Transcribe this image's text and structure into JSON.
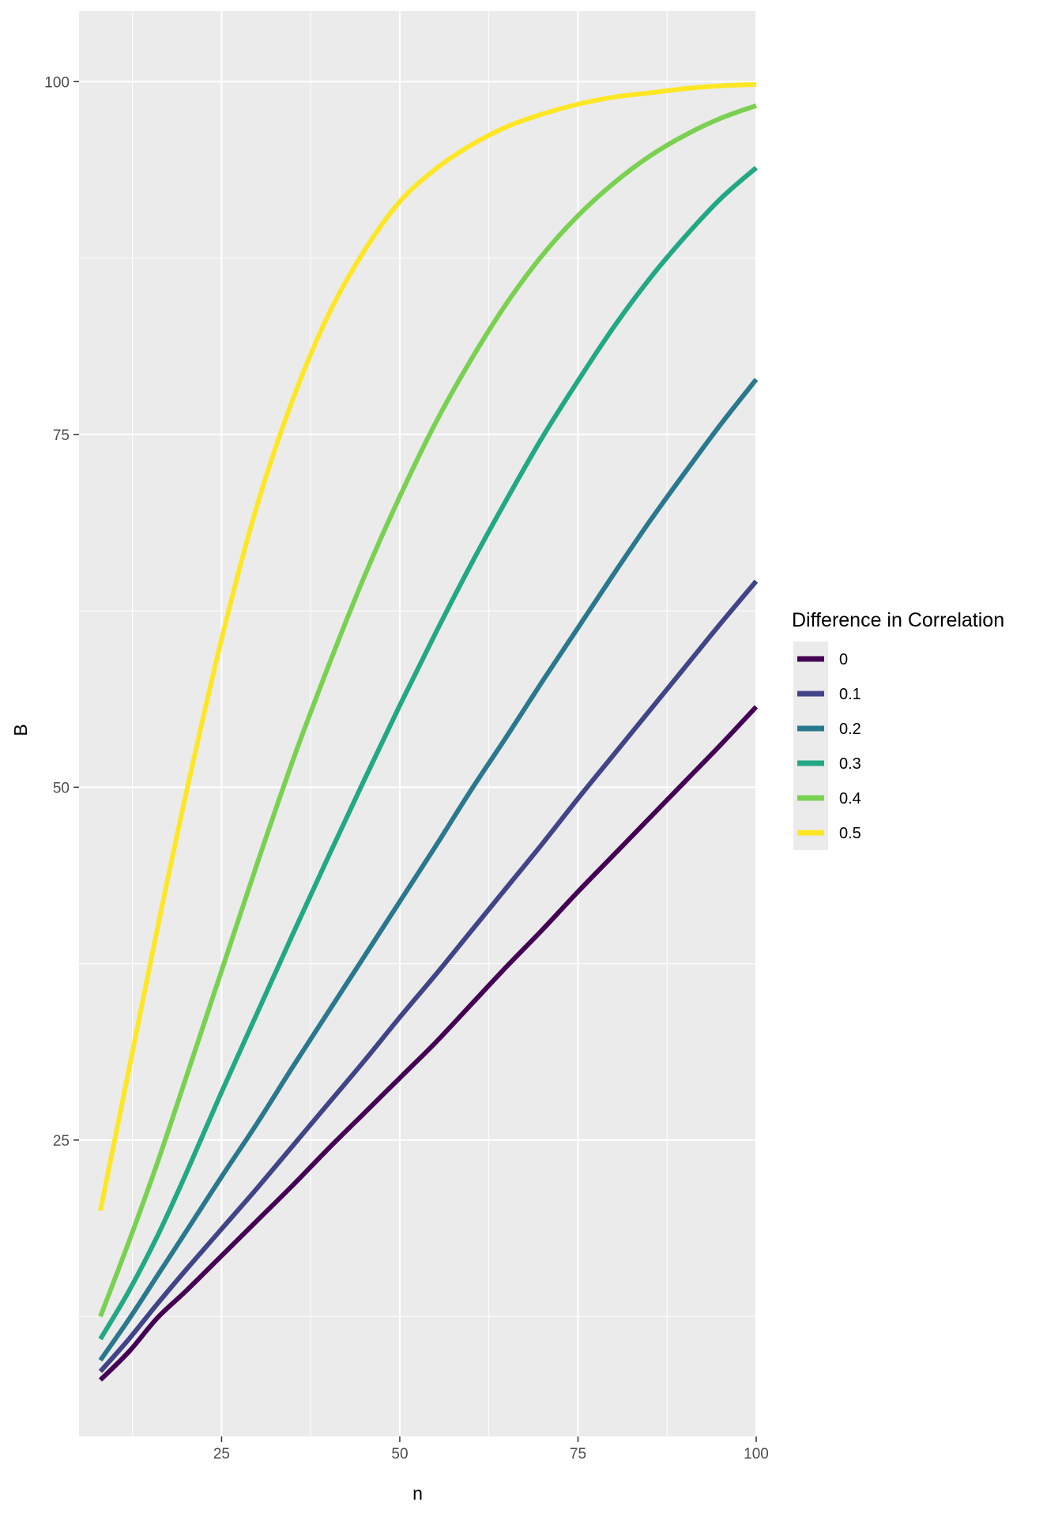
{
  "chart_data": {
    "type": "line",
    "xlabel": "n",
    "ylabel": "B",
    "xlim": [
      5,
      100
    ],
    "ylim": [
      4,
      105
    ],
    "x_ticks": [
      25,
      50,
      75,
      100
    ],
    "y_ticks": [
      25,
      50,
      75,
      100
    ],
    "grid": true,
    "panel_background": "#EBEBEB",
    "legend": {
      "title": "Difference in Correlation",
      "placement": "right"
    },
    "x": [
      8,
      12,
      16,
      20,
      25,
      30,
      35,
      40,
      45,
      50,
      55,
      60,
      65,
      70,
      75,
      80,
      85,
      90,
      95,
      100
    ],
    "series": [
      {
        "name": "0",
        "color": "#440154",
        "values": [
          8.0,
          10.0,
          12.4,
          14.3,
          16.8,
          19.3,
          21.8,
          24.4,
          26.9,
          29.4,
          31.9,
          34.6,
          37.3,
          39.9,
          42.6,
          45.2,
          47.8,
          50.4,
          53.0,
          55.7
        ]
      },
      {
        "name": "0.1",
        "color": "#414487",
        "values": [
          8.6,
          10.9,
          13.4,
          15.8,
          18.7,
          21.6,
          24.6,
          27.6,
          30.6,
          33.7,
          36.7,
          39.8,
          42.9,
          46.0,
          49.2,
          52.3,
          55.4,
          58.5,
          61.6,
          64.6
        ]
      },
      {
        "name": "0.2",
        "color": "#2A788E",
        "values": [
          9.4,
          12.3,
          15.4,
          18.5,
          22.4,
          26.2,
          30.2,
          34.1,
          38.0,
          41.9,
          45.8,
          49.8,
          53.6,
          57.5,
          61.3,
          65.1,
          68.8,
          72.3,
          75.7,
          78.9
        ]
      },
      {
        "name": "0.3",
        "color": "#22A884",
        "values": [
          10.9,
          14.3,
          18.2,
          22.6,
          28.4,
          34.0,
          39.6,
          45.1,
          50.5,
          55.8,
          60.9,
          65.8,
          70.4,
          74.8,
          78.8,
          82.6,
          86.0,
          89.0,
          91.7,
          93.9
        ]
      },
      {
        "name": "0.4",
        "color": "#7AD151",
        "values": [
          12.5,
          17.8,
          23.4,
          29.4,
          37.0,
          44.6,
          51.9,
          58.6,
          64.9,
          70.6,
          75.8,
          80.3,
          84.3,
          87.7,
          90.5,
          92.8,
          94.7,
          96.2,
          97.4,
          98.3
        ]
      },
      {
        "name": "0.5",
        "color": "#FDE725",
        "values": [
          20.0,
          30.0,
          40.0,
          49.5,
          60.5,
          70.0,
          77.5,
          83.5,
          88.0,
          91.5,
          93.8,
          95.5,
          96.8,
          97.7,
          98.4,
          98.9,
          99.2,
          99.5,
          99.7,
          99.8
        ]
      }
    ]
  }
}
